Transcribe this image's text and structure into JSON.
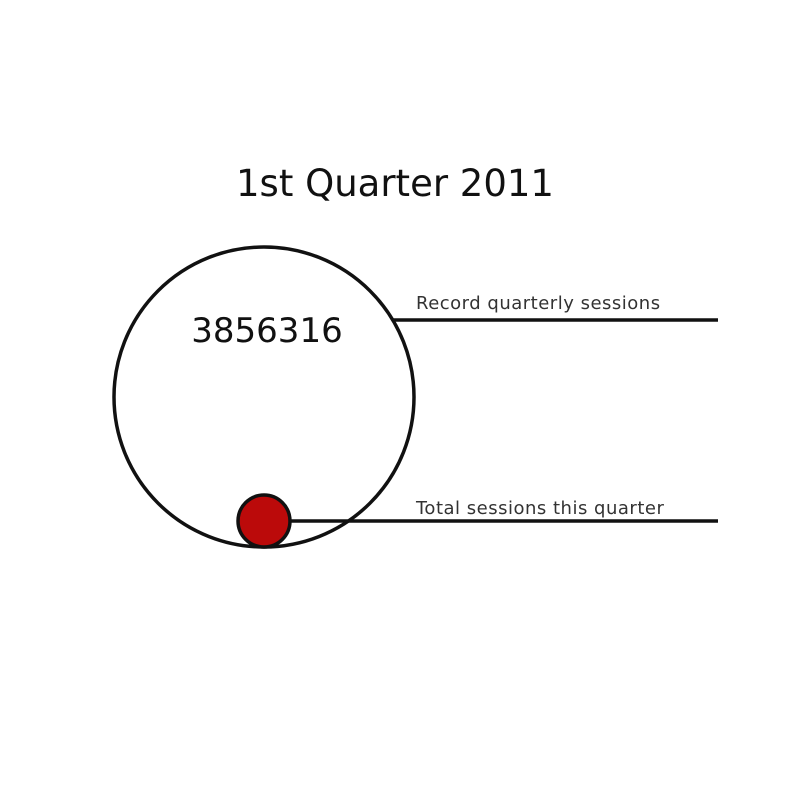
{
  "chart_data": {
    "type": "bubble",
    "title": "1st Quarter 2011",
    "record_label": "Record quarterly sessions",
    "record_value": 3856316,
    "record_value_text": "3856316",
    "current_label": "Total sessions this quarter",
    "current_value_fraction_of_record_area": 0.03,
    "colors": {
      "outline": "#111111",
      "current_fill": "#bb0a0a",
      "background": "#ffffff"
    }
  }
}
